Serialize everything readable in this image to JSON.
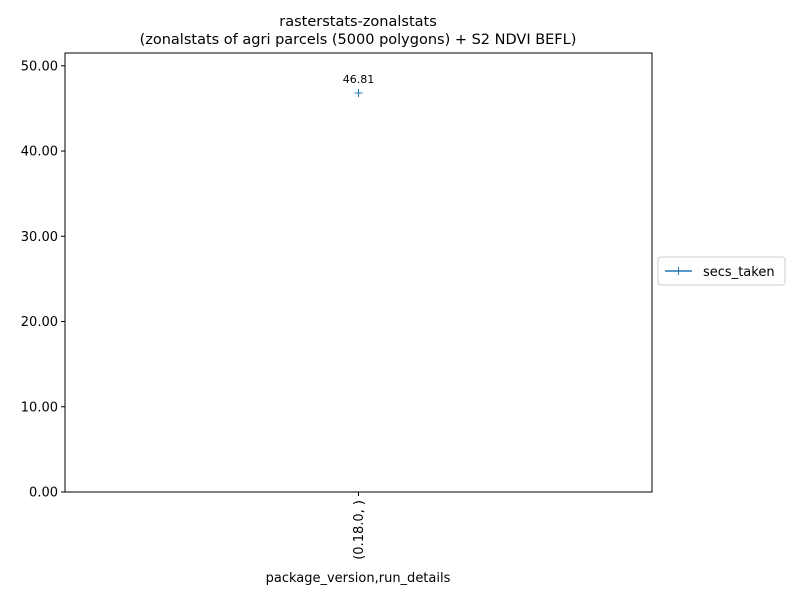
{
  "chart_data": {
    "type": "line",
    "title": "rasterstats-zonalstats",
    "subtitle": "(zonalstats of agri parcels (5000 polygons) + S2 NDVI BEFL)",
    "xlabel": "package_version,run_details",
    "ylabel": "",
    "categories": [
      "(0.18.0, )"
    ],
    "series": [
      {
        "name": "secs_taken",
        "values": [
          46.81
        ],
        "color": "#1f77b4",
        "marker": "plus"
      }
    ],
    "annotations": [
      "46.81"
    ],
    "ylim": [
      0,
      51.5
    ],
    "yticks": [
      "0.00",
      "10.00",
      "20.00",
      "30.00",
      "40.00",
      "50.00"
    ],
    "grid": false,
    "legend_position": "right"
  }
}
